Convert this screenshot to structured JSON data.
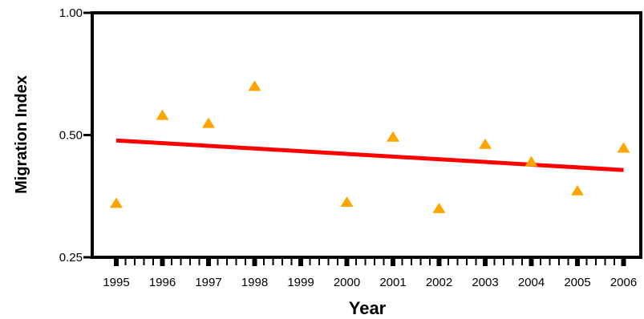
{
  "chart_data": {
    "type": "scatter",
    "xlabel": "Year",
    "ylabel": "Migration Index",
    "y_scale": "log",
    "ylim": [
      0.25,
      1.0
    ],
    "xlim": [
      1995,
      2006
    ],
    "x_ticks": [
      1995,
      1996,
      1997,
      1998,
      1999,
      2000,
      2001,
      2002,
      2003,
      2004,
      2005,
      2006
    ],
    "y_ticks": [
      {
        "value": 0.25,
        "label": "0.25"
      },
      {
        "value": 0.5,
        "label": "0.50"
      },
      {
        "value": 1.0,
        "label": "1.00"
      }
    ],
    "grid": false,
    "series": [
      {
        "kind": "points",
        "marker": "triangle",
        "color": "#ffa500",
        "x": [
          1995,
          1996,
          1997,
          1998,
          2000,
          2001,
          2002,
          2003,
          2004,
          2005,
          2006
        ],
        "y": [
          0.34,
          0.56,
          0.535,
          0.66,
          0.342,
          0.495,
          0.33,
          0.475,
          0.43,
          0.365,
          0.465
        ]
      },
      {
        "kind": "trendline",
        "color": "#ff0000",
        "x": [
          1995,
          2006
        ],
        "y": [
          0.485,
          0.41
        ]
      }
    ]
  }
}
